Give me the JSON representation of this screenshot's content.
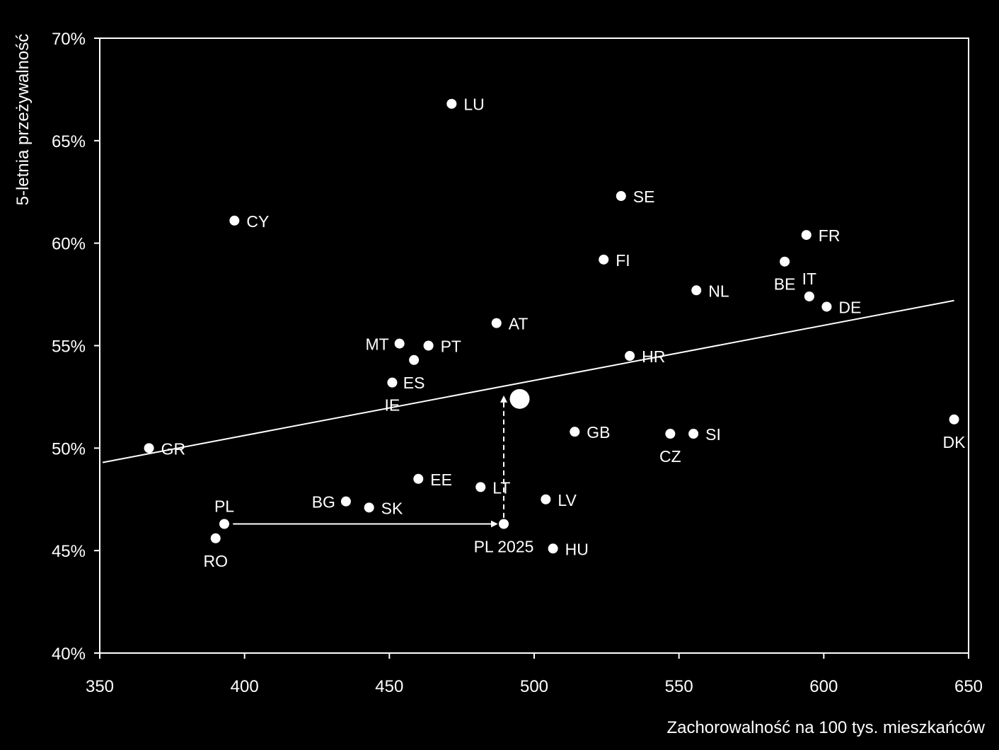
{
  "chart_data": {
    "type": "scatter",
    "xlabel": "Zachorowalność na 100 tys. mieszkańców",
    "ylabel": "5-letnia przeżywalność",
    "xlim": [
      350,
      650
    ],
    "ylim": [
      40,
      70
    ],
    "x_ticks": [
      350,
      400,
      450,
      500,
      550,
      600,
      650
    ],
    "y_ticks": [
      40,
      45,
      50,
      55,
      60,
      65,
      70
    ],
    "y_tick_labels": [
      "40%",
      "45%",
      "50%",
      "55%",
      "60%",
      "65%",
      "70%"
    ],
    "grid": false,
    "colors": {
      "background": "#000000",
      "foreground": "#ffffff"
    },
    "points": [
      {
        "label": "LU",
        "x": 471.5,
        "y": 66.8,
        "label_pos": "right"
      },
      {
        "label": "SE",
        "x": 530,
        "y": 62.3,
        "label_pos": "right"
      },
      {
        "label": "CY",
        "x": 396.5,
        "y": 61.1,
        "label_pos": "right"
      },
      {
        "label": "FR",
        "x": 594,
        "y": 60.4,
        "label_pos": "right"
      },
      {
        "label": "FI",
        "x": 524,
        "y": 59.2,
        "label_pos": "right"
      },
      {
        "label": "BE",
        "x": 586.5,
        "y": 59.1,
        "label_pos": "below"
      },
      {
        "label": "NL",
        "x": 556,
        "y": 57.7,
        "label_pos": "right"
      },
      {
        "label": "IT",
        "x": 595,
        "y": 57.4,
        "label_pos": "above"
      },
      {
        "label": "DE",
        "x": 601,
        "y": 56.9,
        "label_pos": "right"
      },
      {
        "label": "AT",
        "x": 487,
        "y": 56.1,
        "label_pos": "right"
      },
      {
        "label": "MT",
        "x": 453.5,
        "y": 55.1,
        "label_pos": "left"
      },
      {
        "label": "PT",
        "x": 463.5,
        "y": 55.0,
        "label_pos": "right"
      },
      {
        "label": "HR",
        "x": 533,
        "y": 54.5,
        "label_pos": "right"
      },
      {
        "label": "ES",
        "x": 458.5,
        "y": 54.3,
        "label_pos": "below"
      },
      {
        "label": "IE",
        "x": 451,
        "y": 53.2,
        "label_pos": "below"
      },
      {
        "label": "DK",
        "x": 645,
        "y": 51.4,
        "label_pos": "below"
      },
      {
        "label": "GB",
        "x": 514,
        "y": 50.8,
        "label_pos": "right"
      },
      {
        "label": "CZ",
        "x": 547,
        "y": 50.7,
        "label_pos": "below"
      },
      {
        "label": "SI",
        "x": 555,
        "y": 50.7,
        "label_pos": "right"
      },
      {
        "label": "GR",
        "x": 367,
        "y": 50.0,
        "label_pos": "right"
      },
      {
        "label": "EE",
        "x": 460,
        "y": 48.5,
        "label_pos": "right"
      },
      {
        "label": "LT",
        "x": 481.5,
        "y": 48.1,
        "label_pos": "right"
      },
      {
        "label": "LV",
        "x": 504,
        "y": 47.5,
        "label_pos": "right"
      },
      {
        "label": "BG",
        "x": 435,
        "y": 47.4,
        "label_pos": "left"
      },
      {
        "label": "SK",
        "x": 443,
        "y": 47.1,
        "label_pos": "right"
      },
      {
        "label": "PL",
        "x": 393,
        "y": 46.3,
        "label_pos": "above"
      },
      {
        "label": "PL 2025",
        "x": 489.5,
        "y": 46.3,
        "label_pos": "below"
      },
      {
        "label": "RO",
        "x": 390,
        "y": 45.6,
        "label_pos": "below"
      },
      {
        "label": "HU",
        "x": 506.5,
        "y": 45.1,
        "label_pos": "right"
      }
    ],
    "highlight_point": {
      "x": 495,
      "y": 52.4
    },
    "trendline": {
      "x": [
        351,
        645
      ],
      "y": [
        49.3,
        57.2
      ]
    },
    "arrows": [
      {
        "from": [
          396,
          46.3
        ],
        "to": [
          487,
          46.3
        ],
        "style": "solid"
      },
      {
        "from": [
          489.5,
          46.6
        ],
        "to": [
          489.5,
          52.5
        ],
        "style": "dashed"
      }
    ]
  }
}
